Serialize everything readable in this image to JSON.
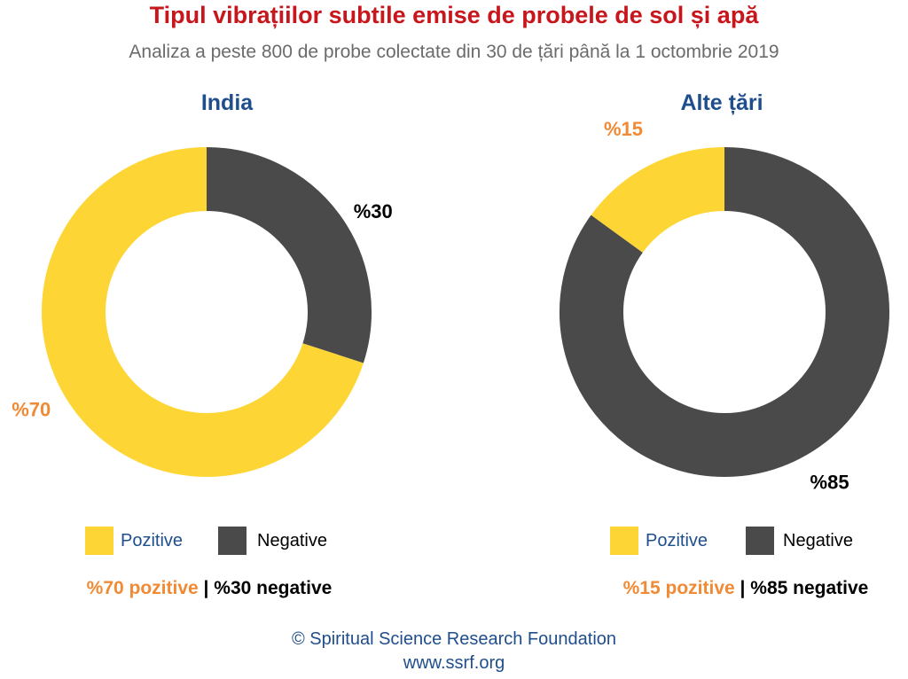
{
  "title": "Tipul vibrațiilor subtile emise de probele de sol și apă",
  "subtitle": "Analiza a peste 800 de probe colectate din 30 de țări până la 1 octombrie 2019",
  "colors": {
    "positive": "#fdd535",
    "negative": "#4a4a4a",
    "positive_text": "#f08a35",
    "negative_text": "#000000",
    "title": "#c8161d",
    "panel_title": "#1f4e8c"
  },
  "chart_data": [
    {
      "type": "pie",
      "variant": "donut",
      "title": "India",
      "categories": [
        "Pozitive",
        "Negative"
      ],
      "values": [
        70,
        30
      ],
      "data_labels": [
        "%70",
        "%30"
      ],
      "legend": [
        "Pozitive",
        "Negative"
      ],
      "summary": {
        "positive": "%70 pozitive",
        "separator": "|",
        "negative": "%30 negative"
      }
    },
    {
      "type": "pie",
      "variant": "donut",
      "title": "Alte țări",
      "categories": [
        "Pozitive",
        "Negative"
      ],
      "values": [
        15,
        85
      ],
      "data_labels": [
        "%15",
        "%85"
      ],
      "legend": [
        "Pozitive",
        "Negative"
      ],
      "summary": {
        "positive": "%15 pozitive",
        "separator": "|",
        "negative": "%85 negative"
      }
    }
  ],
  "footer": {
    "line1": "© Spiritual Science Research Foundation",
    "line2": "www.ssrf.org"
  }
}
